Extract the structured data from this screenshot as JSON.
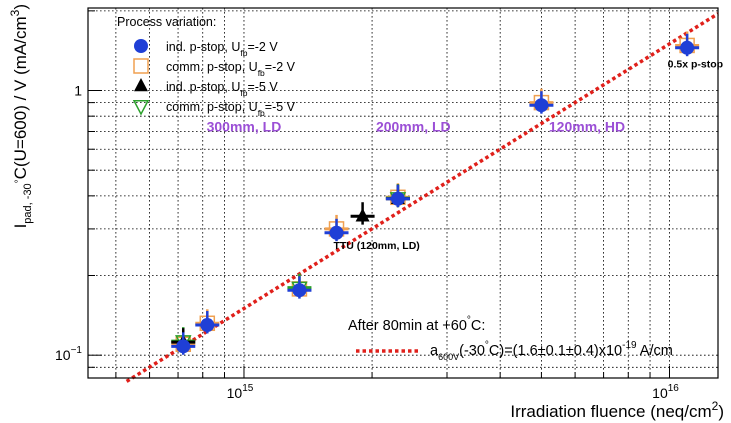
{
  "chart_data": {
    "type": "scatter",
    "title": "",
    "xlabel": "Irradiation fluence (neq/cm²)",
    "ylabel": "I_pad, -30°C(U=600) / V (mA/cm³)",
    "ylabel_parts": {
      "main": "I",
      "sub": "pad, -30",
      "circ": "°",
      "rest": "C(U=600) / V (mA/cm",
      "sup": "3",
      "close": ")"
    },
    "xlabel_parts": {
      "main": "Irradiation fluence (neq/cm",
      "sup": "2",
      "close": ")"
    },
    "x_scale": "log",
    "y_scale": "log",
    "xlim": [
      430000000000000.0,
      1.3e+16
    ],
    "ylim": [
      0.082,
      2.05
    ],
    "grid": true,
    "x_ticks": [
      {
        "value": 1000000000000000.0,
        "label": "10",
        "exp": "15"
      },
      {
        "value": 1e+16,
        "label": "10",
        "exp": "16"
      }
    ],
    "y_ticks": [
      {
        "value": 0.1,
        "label": "10",
        "exp": "−1"
      },
      {
        "value": 1,
        "label": "1",
        "exp": ""
      }
    ],
    "legend": {
      "title": "Process variation:",
      "position": "top-left",
      "entries": [
        {
          "text": "ind. p-stop, U",
          "sub": "fb",
          "rest": "=-2 V",
          "marker": "circle",
          "color": "#1f3fd6"
        },
        {
          "text": "comm. p-stop, U",
          "sub": "fb",
          "rest": "=-2 V",
          "marker": "open-square",
          "color": "#f0a050"
        },
        {
          "text": "ind. p-stop, U",
          "sub": "fb",
          "rest": "=-5 V",
          "marker": "triangle-up",
          "color": "#000000"
        },
        {
          "text": "comm. p-stop, U",
          "sub": "fb",
          "rest": "=-5 V",
          "marker": "open-triangle-down",
          "color": "#2aa02a"
        }
      ]
    },
    "series": [
      {
        "name": "ind. p-stop, Ufb=-2 V",
        "marker": "circle",
        "color": "#1f3fd6",
        "points": [
          {
            "x": 720000000000000.0,
            "y": 0.108
          },
          {
            "x": 820000000000000.0,
            "y": 0.13
          },
          {
            "x": 1350000000000000.0,
            "y": 0.176
          },
          {
            "x": 1650000000000000.0,
            "y": 0.29
          },
          {
            "x": 2300000000000000.0,
            "y": 0.39
          },
          {
            "x": 5000000000000000.0,
            "y": 0.88
          },
          {
            "x": 1.1e+16,
            "y": 1.45
          }
        ]
      },
      {
        "name": "comm. p-stop, Ufb=-2 V",
        "marker": "open-square",
        "color": "#f0a050",
        "points": [
          {
            "x": 720000000000000.0,
            "y": 0.11
          },
          {
            "x": 820000000000000.0,
            "y": 0.132
          },
          {
            "x": 1350000000000000.0,
            "y": 0.178
          },
          {
            "x": 1650000000000000.0,
            "y": 0.3
          },
          {
            "x": 2300000000000000.0,
            "y": 0.395
          },
          {
            "x": 5000000000000000.0,
            "y": 0.9
          },
          {
            "x": 1.1e+16,
            "y": 1.48
          }
        ]
      },
      {
        "name": "ind. p-stop, Ufb=-5 V",
        "marker": "triangle-up",
        "color": "#000000",
        "points": [
          {
            "x": 720000000000000.0,
            "y": 0.112
          },
          {
            "x": 1900000000000000.0,
            "y": 0.335
          },
          {
            "x": 2300000000000000.0,
            "y": 0.39
          }
        ]
      },
      {
        "name": "comm. p-stop, Ufb=-5 V",
        "marker": "open-triangle-down",
        "color": "#2aa02a",
        "points": [
          {
            "x": 720000000000000.0,
            "y": 0.113
          },
          {
            "x": 1350000000000000.0,
            "y": 0.18
          },
          {
            "x": 2300000000000000.0,
            "y": 0.392
          }
        ]
      }
    ],
    "fit_line": {
      "color": "#e0201b",
      "style": "dotted",
      "slope_loglog": 1.0,
      "x": [
        530000000000000.0,
        1.3e+16
      ],
      "y": [
        0.0796,
        1.951
      ]
    },
    "annotations": [
      {
        "text": "300mm, LD",
        "color": "#9b4fd6",
        "x": 1000000000000000.0,
        "y": 0.7
      },
      {
        "text": "200mm, LD",
        "color": "#9b4fd6",
        "x": 2500000000000000.0,
        "y": 0.7
      },
      {
        "text": "120mm, HD",
        "color": "#9b4fd6",
        "x": 6400000000000000.0,
        "y": 0.7
      },
      {
        "text": "TTU (120mm, LD)",
        "color": "#000000",
        "x": 2050000000000000.0,
        "y": 0.252
      },
      {
        "text": "0.5x p-stop",
        "color": "#000000",
        "x": 1.15e+16,
        "y": 1.22
      }
    ],
    "fit_label": {
      "header": "After 80min at +60",
      "header_circ": "°",
      "header_close": "C:",
      "a": "a",
      "a_sub": "600V",
      "a_mid": "(-30",
      "a_circ": "°",
      "a_rest": "C)=(1.6±0.1±0.4)x10",
      "a_exp": "-19",
      "a_unit": " A/cm"
    }
  }
}
